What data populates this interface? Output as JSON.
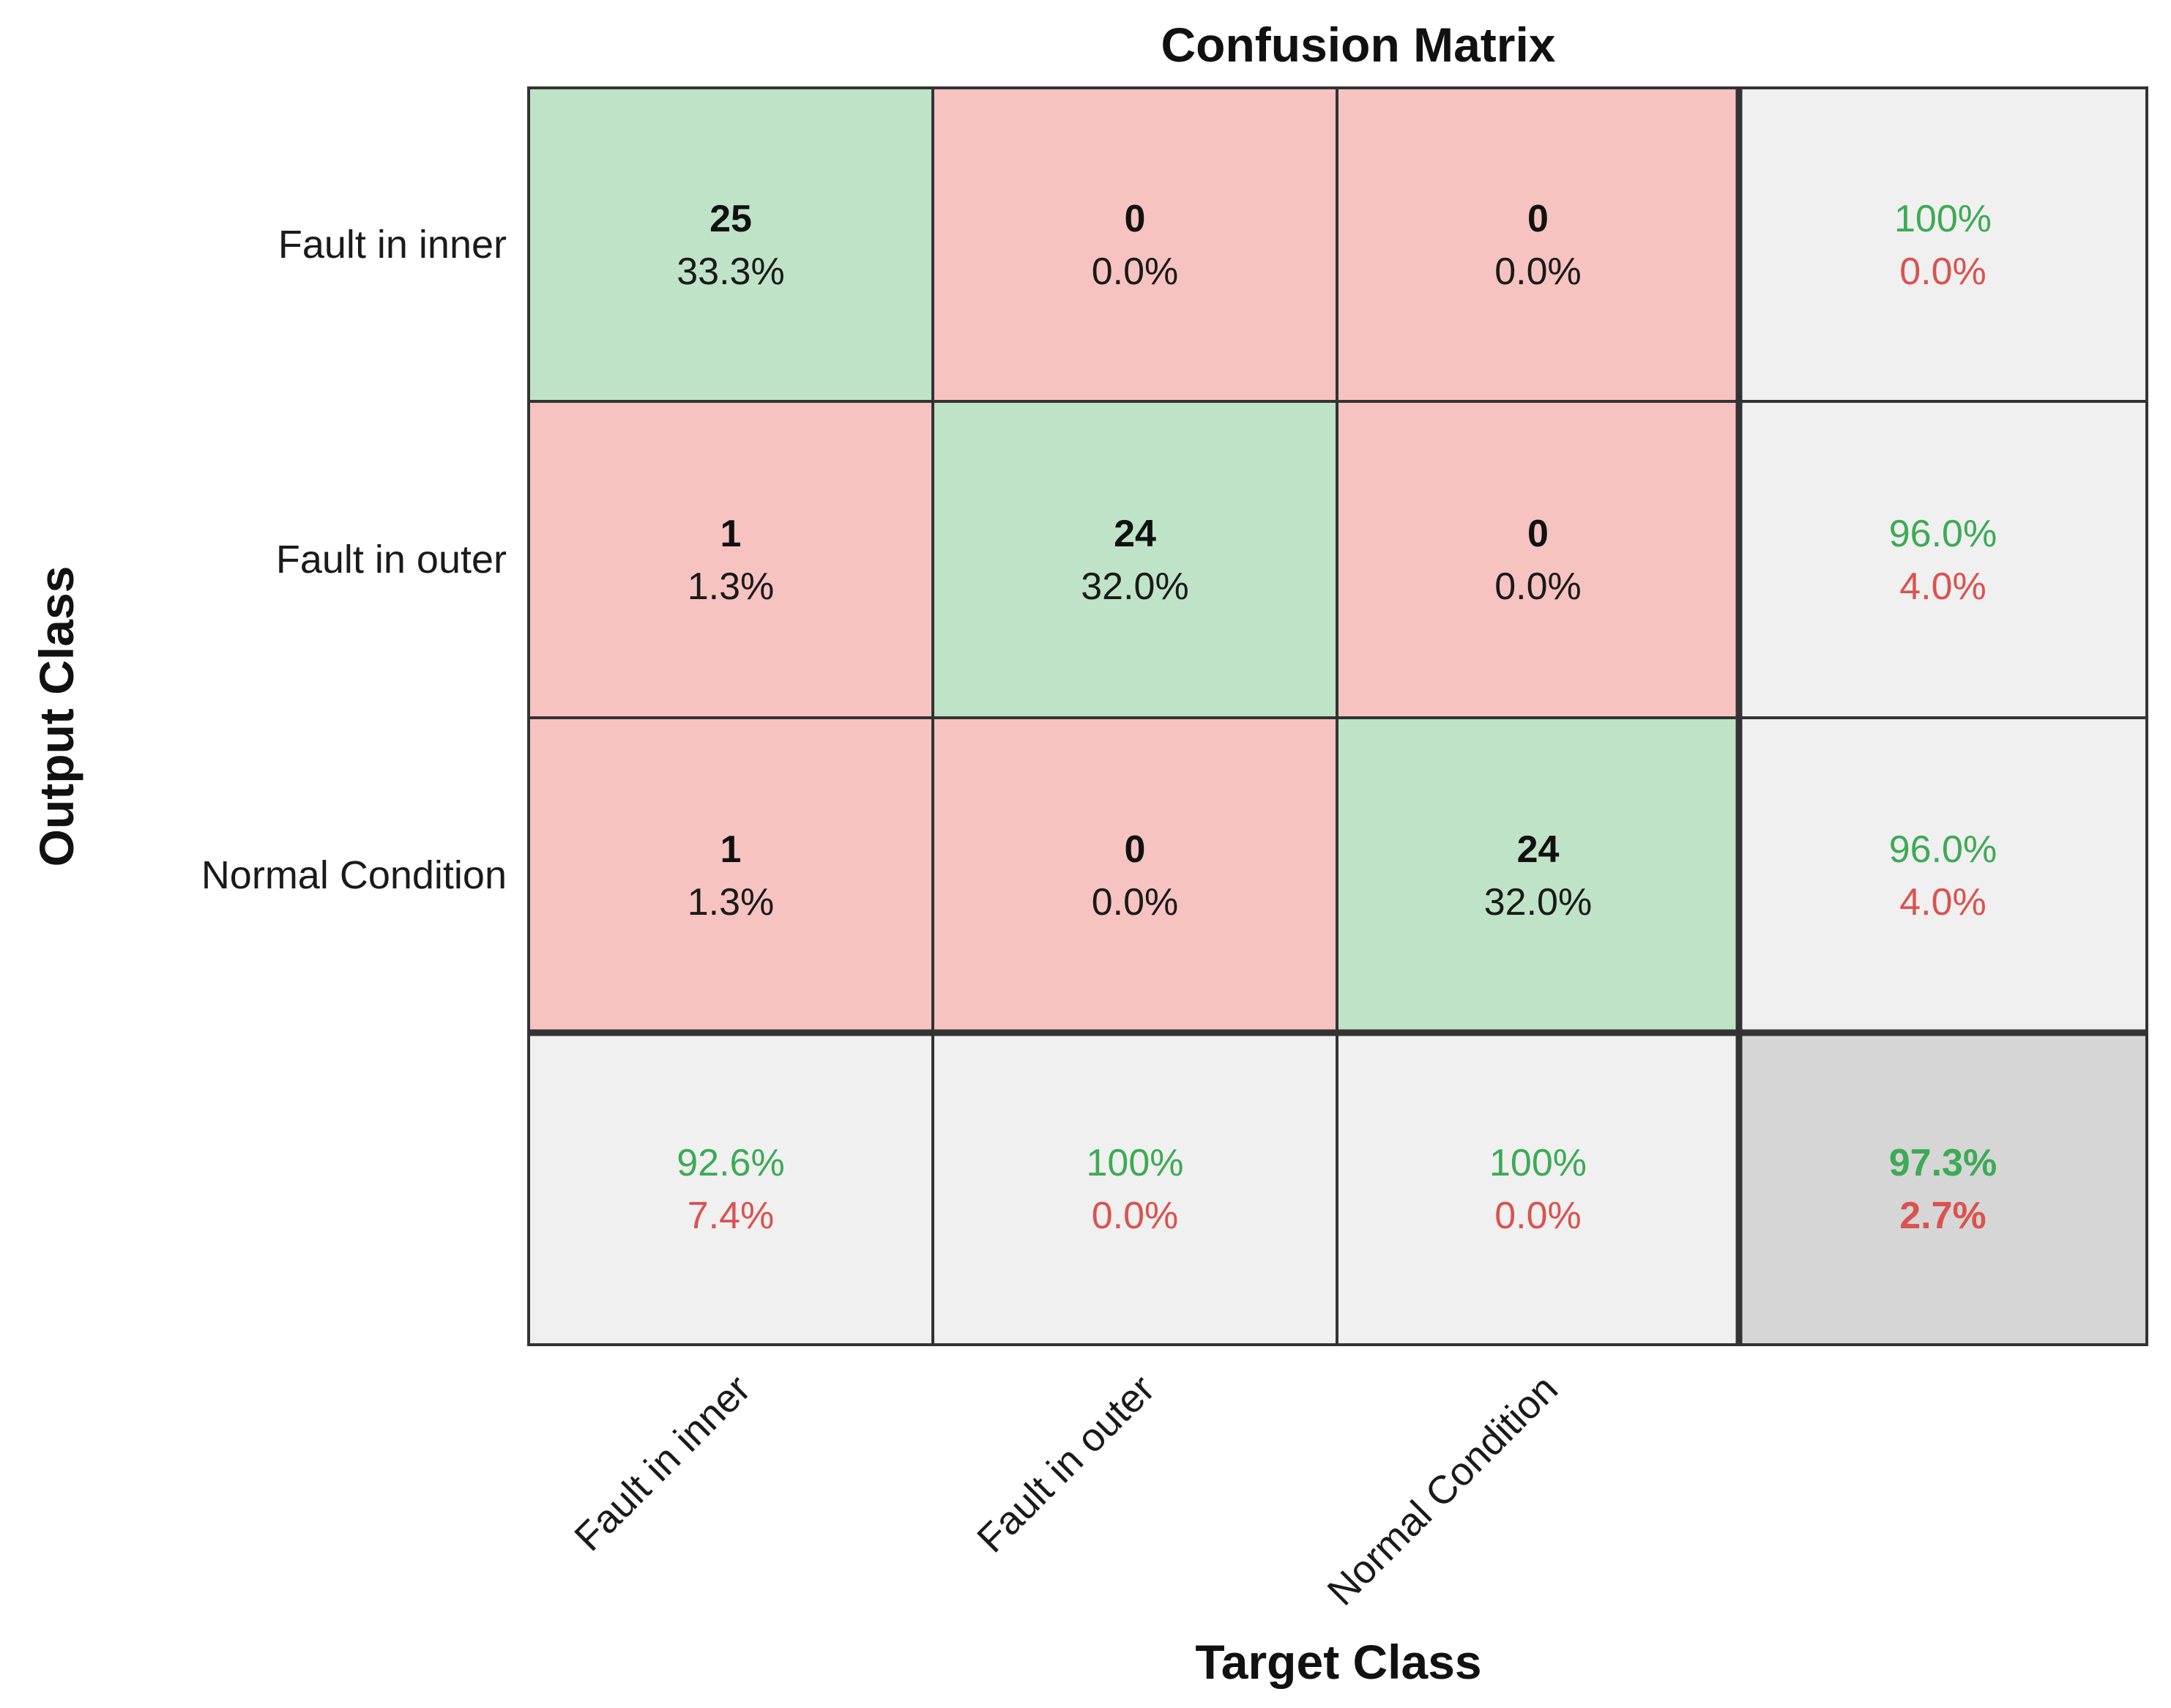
{
  "chart_data": {
    "type": "heatmap",
    "title": "Confusion Matrix",
    "xlabel": "Target Class",
    "ylabel": "Output Class",
    "classes": [
      "Fault in inner",
      "Fault in outer",
      "Normal Condition"
    ],
    "counts": [
      [
        25,
        0,
        0
      ],
      [
        1,
        24,
        0
      ],
      [
        1,
        0,
        24
      ]
    ],
    "cell_percents": [
      [
        "33.3%",
        "0.0%",
        "0.0%"
      ],
      [
        "1.3%",
        "32.0%",
        "0.0%"
      ],
      [
        "1.3%",
        "0.0%",
        "32.0%"
      ]
    ],
    "row_summary": [
      {
        "correct": "100%",
        "incorrect": "0.0%"
      },
      {
        "correct": "96.0%",
        "incorrect": "4.0%"
      },
      {
        "correct": "96.0%",
        "incorrect": "4.0%"
      }
    ],
    "column_summary": [
      {
        "correct": "92.6%",
        "incorrect": "7.4%"
      },
      {
        "correct": "100%",
        "incorrect": "0.0%"
      },
      {
        "correct": "100%",
        "incorrect": "0.0%"
      }
    ],
    "overall": {
      "correct": "97.3%",
      "incorrect": "2.7%"
    },
    "colors": {
      "correct_cell": "#bfe3c6",
      "incorrect_cell": "#f6c3c1",
      "summary_cell": "#f0f0f0",
      "overall_cell": "#d6d6d6",
      "correct_text": "#3daa55",
      "incorrect_text": "#d9534f",
      "grid_line": "#333333"
    }
  }
}
